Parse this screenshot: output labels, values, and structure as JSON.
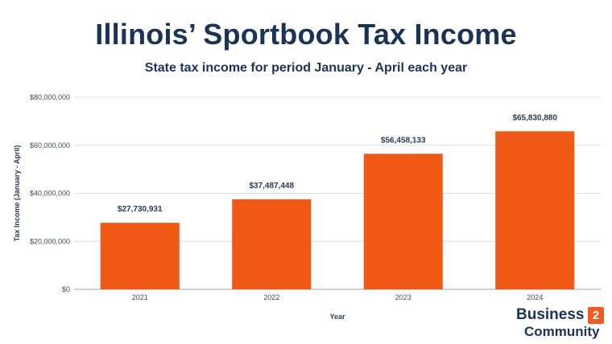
{
  "chart_data": {
    "type": "bar",
    "title": "Illinois’ Sportbook Tax Income",
    "subtitle": "State tax income for period January - April each year",
    "xlabel": "Year",
    "ylabel": "Tax Income (January - April)",
    "categories": [
      "2021",
      "2022",
      "2023",
      "2024"
    ],
    "values": [
      27730931,
      37487448,
      56458133,
      65830880
    ],
    "data_labels": [
      "$27,730,931",
      "$37,487,448",
      "$56,458,133",
      "$65,830,880"
    ],
    "ylim": [
      0,
      80000000
    ],
    "yticks": [
      0,
      20000000,
      40000000,
      60000000,
      80000000
    ],
    "ytick_labels": [
      "$0",
      "$20,000,000",
      "$40,000,000",
      "$60,000,000",
      "$80,000,000"
    ],
    "grid": true,
    "bar_color": "#f15a16"
  },
  "branding": {
    "name_line1": "Business",
    "badge": "2",
    "name_line2": "Community",
    "accent_color": "#f15a22"
  }
}
